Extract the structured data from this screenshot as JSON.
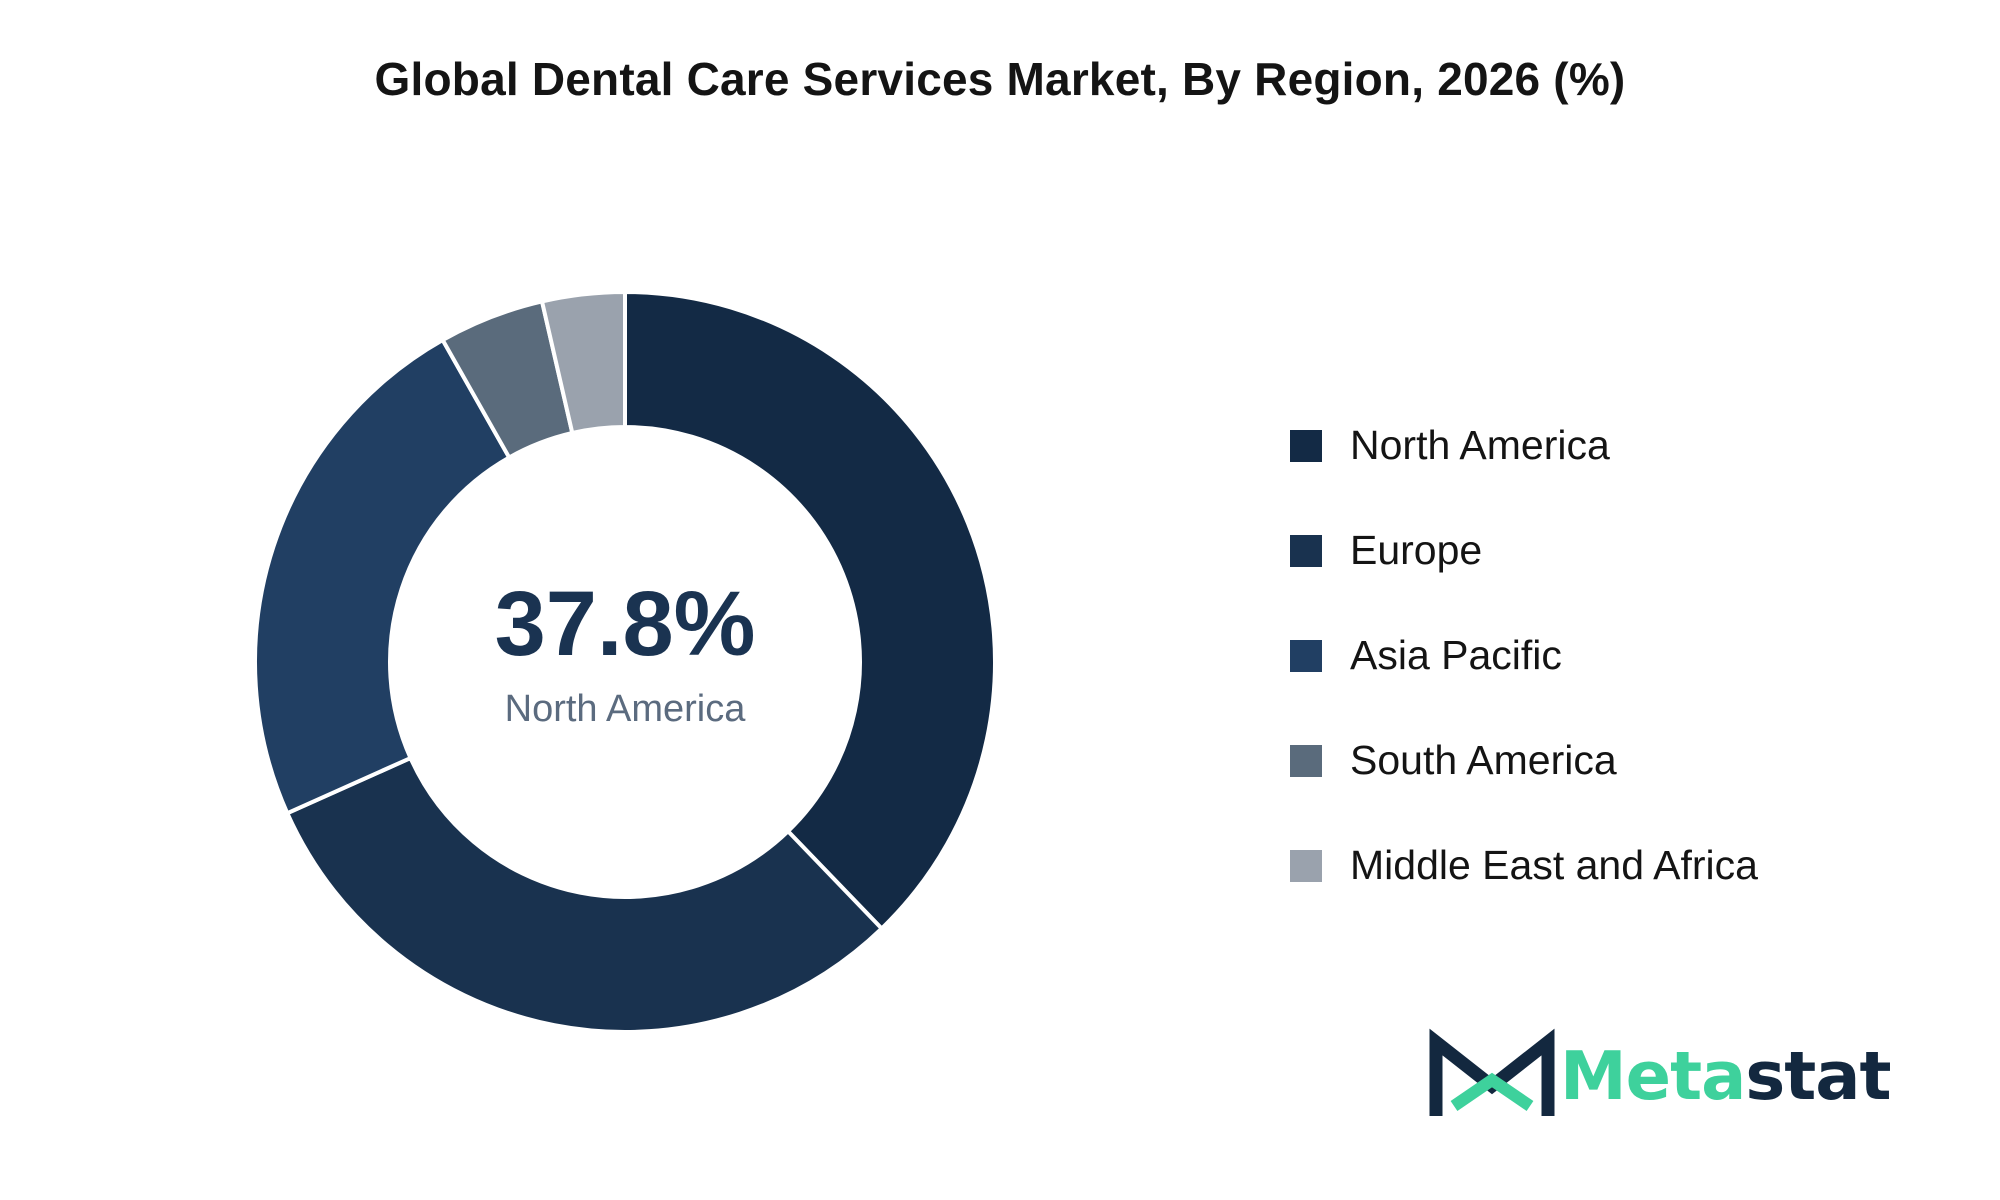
{
  "chart_data": {
    "type": "pie",
    "title": "Global Dental Care Services Market, By Region, 2026 (%)",
    "categories": [
      "North America",
      "Europe",
      "Asia Pacific",
      "South America",
      "Middle East and Africa"
    ],
    "values": [
      37.8,
      30.5,
      23.5,
      4.6,
      3.6
    ],
    "colors": [
      "#132a45",
      "#19324f",
      "#213f63",
      "#5a6b7c",
      "#9aa2ad"
    ],
    "center_value": "37.8%",
    "center_label": "North America",
    "legend_position": "right"
  },
  "legend": [
    {
      "label": "North America",
      "color": "#132a45"
    },
    {
      "label": "Europe",
      "color": "#19324f"
    },
    {
      "label": "Asia Pacific",
      "color": "#213f63"
    },
    {
      "label": "South America",
      "color": "#5a6b7c"
    },
    {
      "label": "Middle East and Africa",
      "color": "#9aa2ad"
    }
  ],
  "logo": {
    "text_primary": "Meta",
    "text_secondary": "stat",
    "icon": "metastat-m-icon"
  }
}
